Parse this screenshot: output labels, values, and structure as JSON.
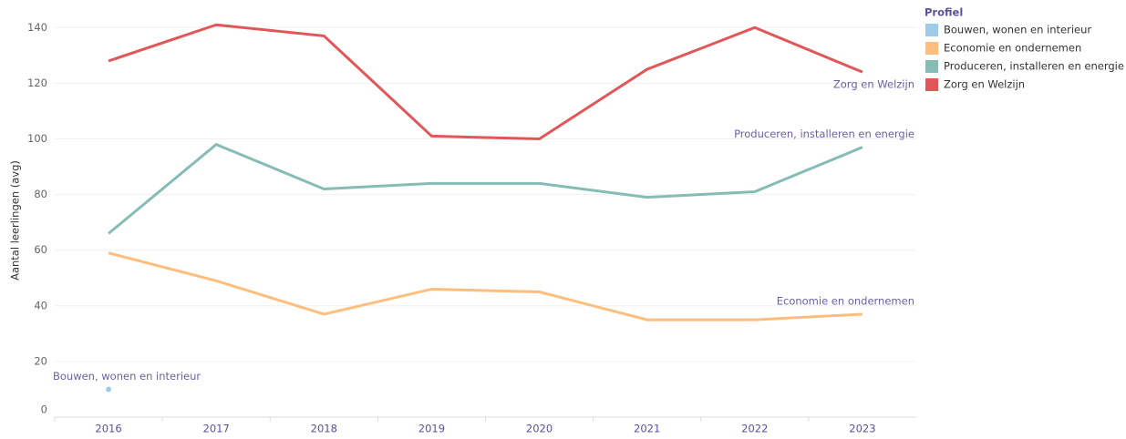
{
  "chart_data": {
    "type": "line",
    "y_axis_label": "Aantal leerlingen (avg)",
    "legend_title": "Profiel",
    "x": [
      "2016",
      "2017",
      "2018",
      "2019",
      "2020",
      "2021",
      "2022",
      "2023"
    ],
    "series": [
      {
        "name": "Bouwen, wonen en interieur",
        "color": "#a0cbe8",
        "values": [
          10,
          null,
          null,
          null,
          null,
          null,
          null,
          null
        ]
      },
      {
        "name": "Economie en ondernemen",
        "color": "#ffbe7d",
        "values": [
          59,
          49,
          37,
          46,
          45,
          35,
          35,
          37
        ]
      },
      {
        "name": "Produceren, installeren en energie",
        "color": "#86bcb6",
        "values": [
          66,
          98,
          82,
          84,
          84,
          79,
          81,
          97
        ]
      },
      {
        "name": "Zorg en Welzijn",
        "color": "#e15759",
        "values": [
          128,
          141,
          137,
          101,
          100,
          125,
          140,
          124
        ]
      }
    ],
    "ylim": [
      0,
      145
    ],
    "yticks": [
      0,
      20,
      40,
      60,
      80,
      100,
      120,
      140
    ],
    "grid": true,
    "legend": "right"
  }
}
